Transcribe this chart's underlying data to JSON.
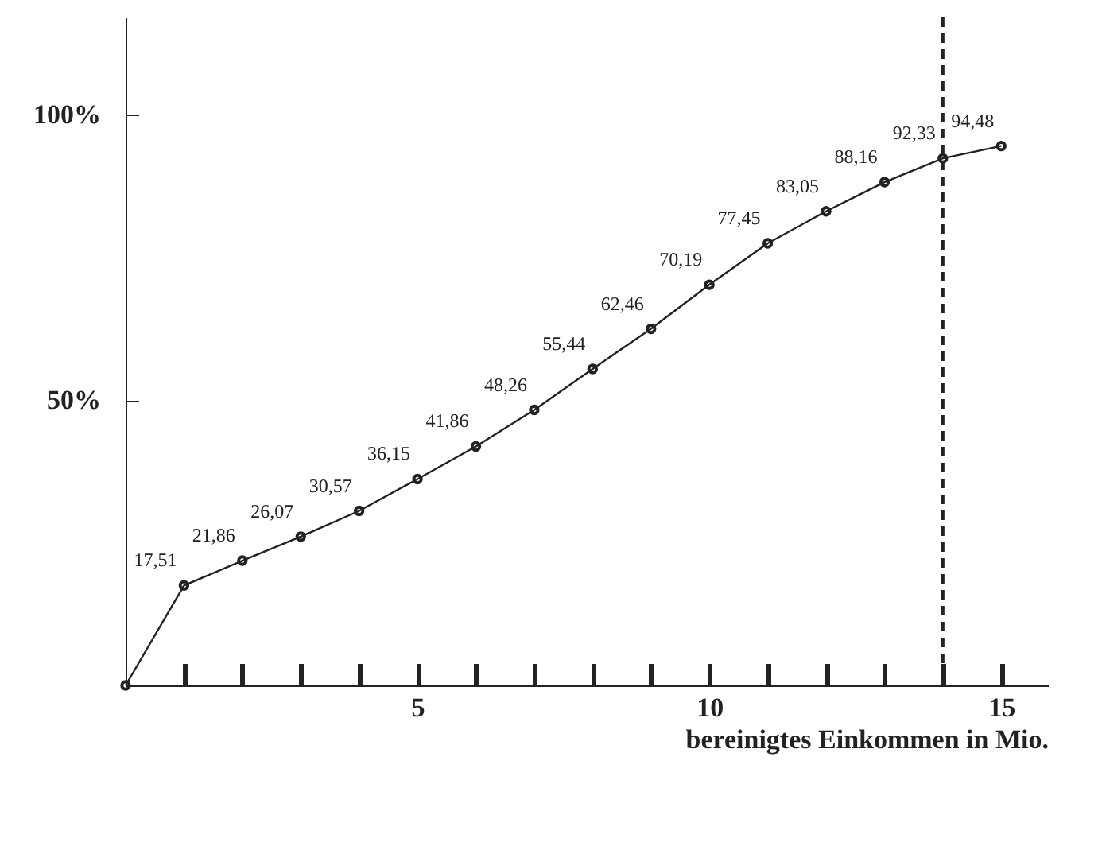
{
  "chart_data": {
    "type": "line",
    "xlabel": "bereinigtes Einkommen in Mio.",
    "x": [
      0,
      1,
      2,
      3,
      4,
      5,
      6,
      7,
      8,
      9,
      10,
      11,
      12,
      13,
      14,
      15
    ],
    "values": [
      0,
      17.51,
      21.86,
      26.07,
      30.57,
      36.15,
      41.86,
      48.26,
      55.44,
      62.46,
      70.19,
      77.45,
      83.05,
      88.16,
      92.33,
      94.48
    ],
    "value_labels": [
      null,
      "17,51",
      "21,86",
      "26,07",
      "30,57",
      "36,15",
      "41,86",
      "48,26",
      "55,44",
      "62,46",
      "70,19",
      "77,45",
      "83,05",
      "88,16",
      "92,33",
      "94,48"
    ],
    "color": "#222222",
    "marker": "circle",
    "line_style": "solid",
    "xlim": [
      0,
      15.8
    ],
    "ylim": [
      0,
      117
    ],
    "xticks": [
      {
        "value": 1,
        "label": null
      },
      {
        "value": 2,
        "label": null
      },
      {
        "value": 3,
        "label": null
      },
      {
        "value": 4,
        "label": null
      },
      5,
      {
        "value": 6,
        "label": null
      },
      {
        "value": 7,
        "label": null
      },
      {
        "value": 8,
        "label": null
      },
      {
        "value": 9,
        "label": null
      },
      10,
      {
        "value": 11,
        "label": null
      },
      {
        "value": 12,
        "label": null
      },
      {
        "value": 13,
        "label": null
      },
      {
        "value": 14,
        "label": null
      },
      15
    ],
    "yticks": [
      {
        "value": 50,
        "label": "50%"
      },
      {
        "value": 100,
        "label": "100%"
      }
    ],
    "ref_lines": [
      {
        "axis": "x",
        "value": 14,
        "line_style": "dashed",
        "color": "#222222"
      }
    ],
    "grid": false
  }
}
